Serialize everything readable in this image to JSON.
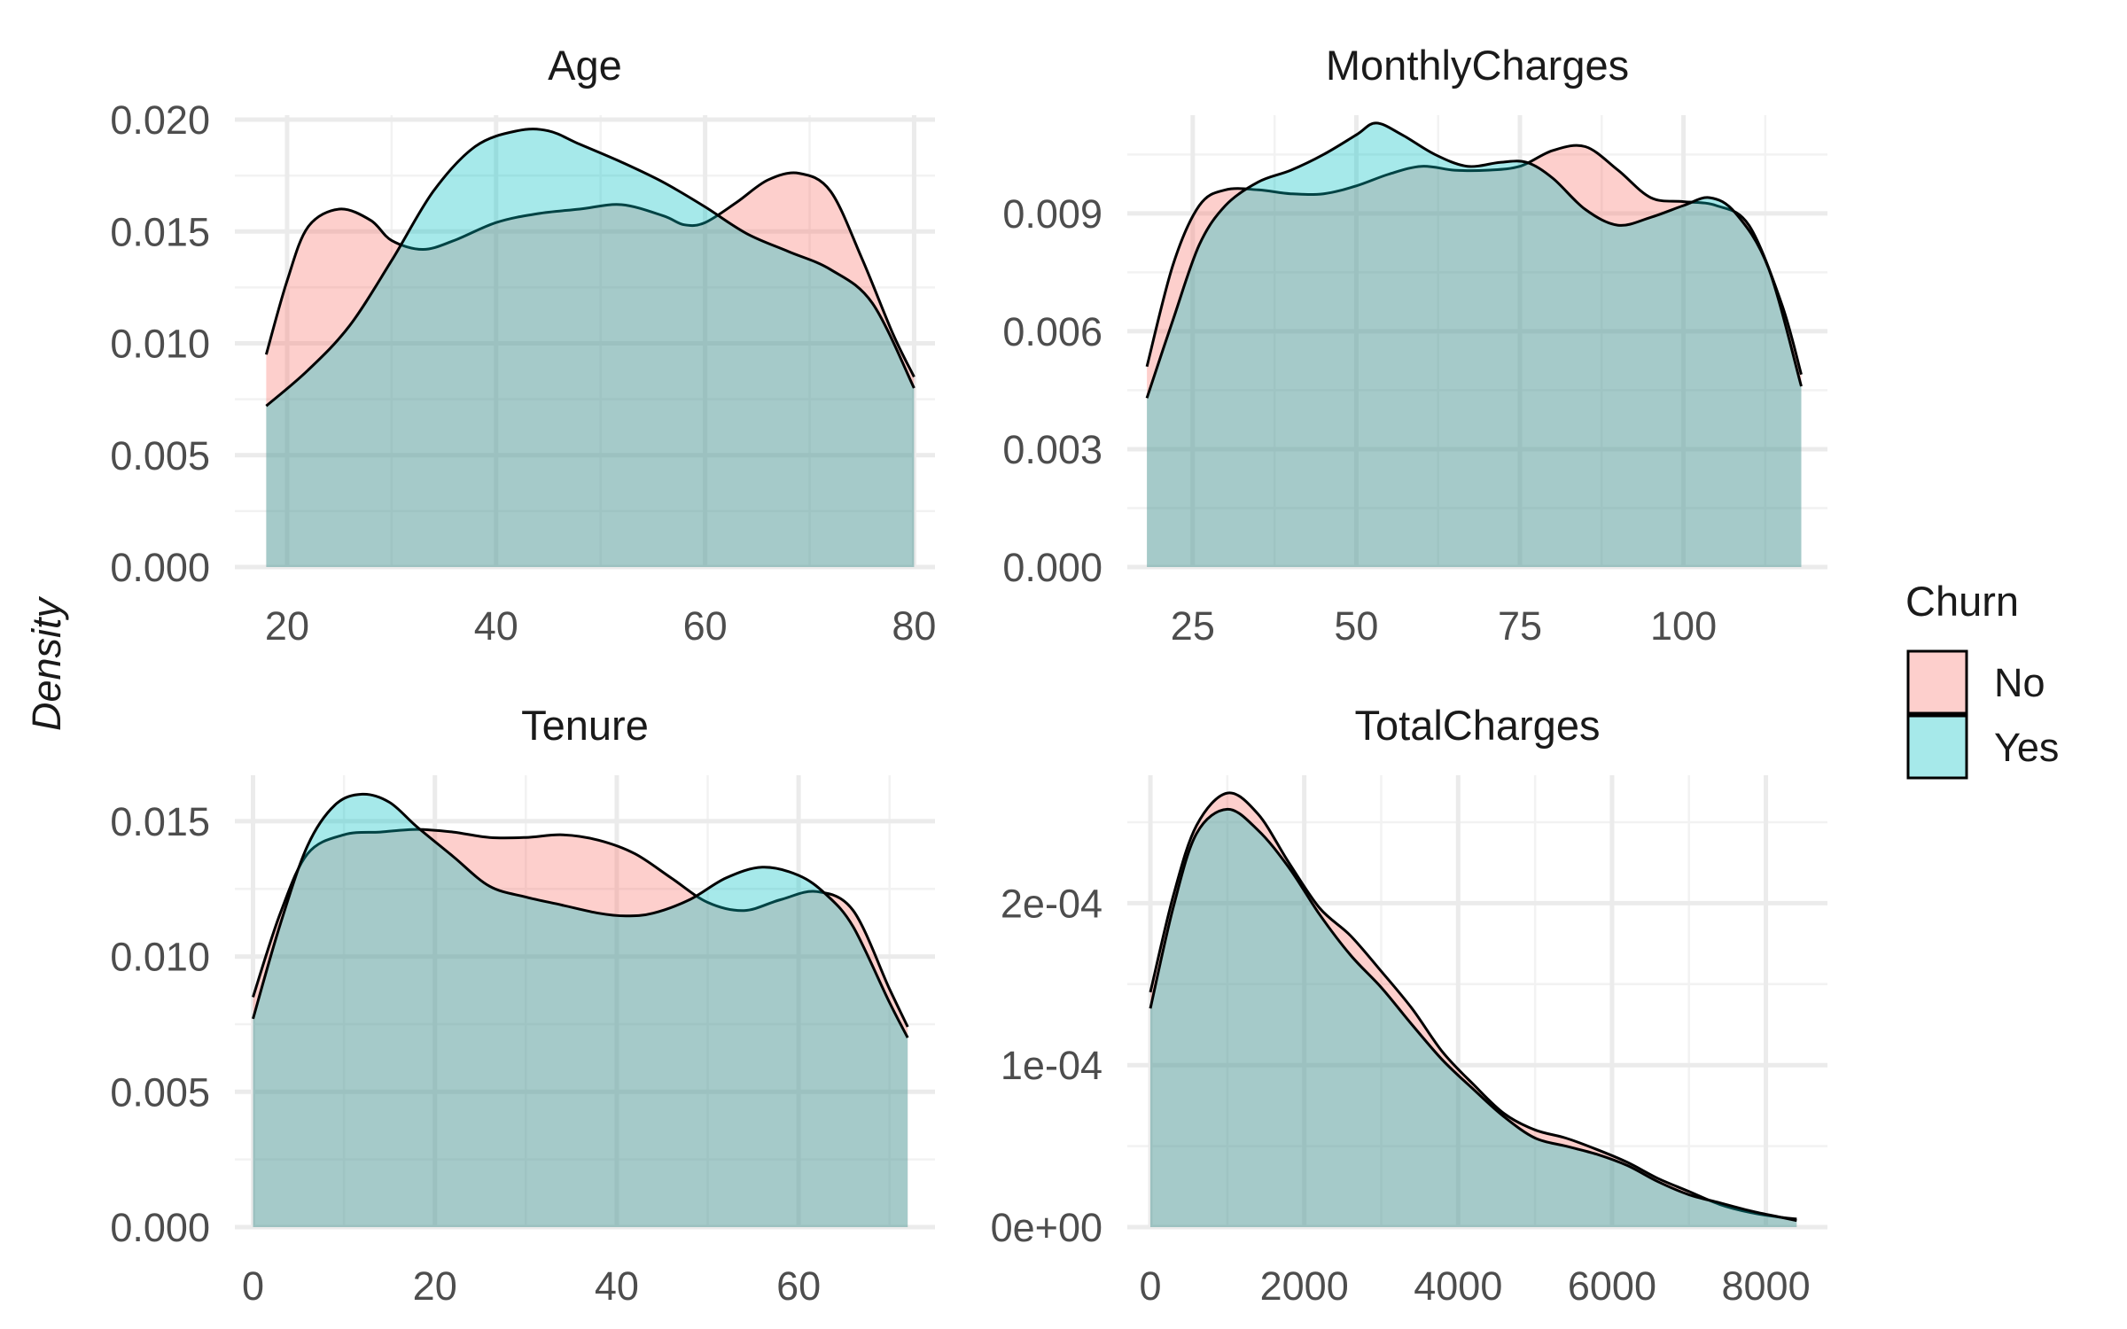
{
  "chart_data": {
    "type": "area",
    "ylabel": "Density",
    "legend": {
      "title": "Churn",
      "placement": "right",
      "entries": [
        {
          "name": "No",
          "color": "#F8766D"
        },
        {
          "name": "Yes",
          "color": "#00BFC4"
        }
      ]
    },
    "fill_alpha": 0.35,
    "panels": [
      {
        "title": "Age",
        "xlim": [
          15,
          82
        ],
        "ylim": [
          0,
          0.0202
        ],
        "xticks": [
          20,
          40,
          60,
          80
        ],
        "xtick_labels": [
          "20",
          "40",
          "60",
          "80"
        ],
        "yticks": [
          0,
          0.005,
          0.01,
          0.015,
          0.02
        ],
        "ytick_labels": [
          "0.000",
          "0.005",
          "0.010",
          "0.015",
          "0.020"
        ],
        "series": [
          {
            "name": "No",
            "x": [
              18,
              20,
              22,
              25,
              28,
              30,
              33,
              36,
              40,
              44,
              48,
              52,
              56,
              58,
              60,
              63,
              66,
              69,
              72,
              75,
              78,
              80
            ],
            "y": [
              0.0095,
              0.0128,
              0.0152,
              0.016,
              0.0155,
              0.0146,
              0.0142,
              0.0146,
              0.0154,
              0.0158,
              0.016,
              0.0162,
              0.0157,
              0.0153,
              0.0154,
              0.0163,
              0.0173,
              0.0176,
              0.0168,
              0.0138,
              0.0104,
              0.0085
            ]
          },
          {
            "name": "Yes",
            "x": [
              18,
              22,
              26,
              30,
              34,
              38,
              42,
              45,
              48,
              52,
              56,
              60,
              64,
              68,
              72,
              76,
              80
            ],
            "y": [
              0.0072,
              0.0088,
              0.0108,
              0.0137,
              0.0168,
              0.0188,
              0.0195,
              0.0195,
              0.0189,
              0.0181,
              0.0172,
              0.0161,
              0.0149,
              0.0141,
              0.0133,
              0.0118,
              0.008
            ]
          }
        ]
      },
      {
        "title": "MonthlyCharges",
        "xlim": [
          15,
          122
        ],
        "ylim": [
          0,
          0.0115
        ],
        "xticks": [
          25,
          50,
          75,
          100
        ],
        "xtick_labels": [
          "25",
          "50",
          "75",
          "100"
        ],
        "yticks": [
          0,
          0.003,
          0.006,
          0.009
        ],
        "ytick_labels": [
          "0.000",
          "0.003",
          "0.006",
          "0.009"
        ],
        "series": [
          {
            "name": "No",
            "x": [
              18,
              22,
              26,
              30,
              35,
              40,
              45,
              50,
              55,
              60,
              65,
              70,
              75,
              80,
              85,
              90,
              95,
              100,
              105,
              110,
              115,
              118
            ],
            "y": [
              0.0051,
              0.0077,
              0.0092,
              0.0096,
              0.0096,
              0.0095,
              0.0095,
              0.0097,
              0.01,
              0.0102,
              0.0101,
              0.0101,
              0.0102,
              0.0106,
              0.0107,
              0.0101,
              0.0094,
              0.0093,
              0.0092,
              0.0087,
              0.0067,
              0.0049
            ]
          },
          {
            "name": "Yes",
            "x": [
              18,
              22,
              26,
              30,
              35,
              40,
              45,
              50,
              53,
              57,
              62,
              67,
              72,
              76,
              80,
              85,
              90,
              95,
              100,
              104,
              108,
              113,
              118
            ],
            "y": [
              0.0043,
              0.0063,
              0.0082,
              0.0092,
              0.0098,
              0.0101,
              0.0105,
              0.011,
              0.0113,
              0.011,
              0.0105,
              0.0102,
              0.0103,
              0.0103,
              0.0099,
              0.0091,
              0.0087,
              0.0089,
              0.0092,
              0.0094,
              0.009,
              0.0076,
              0.0046
            ]
          }
        ]
      },
      {
        "title": "Tenure",
        "xlim": [
          -2,
          75
        ],
        "ylim": [
          0,
          0.0167
        ],
        "xticks": [
          0,
          20,
          40,
          60
        ],
        "xtick_labels": [
          "0",
          "20",
          "40",
          "60"
        ],
        "yticks": [
          0,
          0.005,
          0.01,
          0.015
        ],
        "ytick_labels": [
          "0.000",
          "0.005",
          "0.010",
          "0.015"
        ],
        "series": [
          {
            "name": "No",
            "x": [
              0,
              3,
              6,
              10,
              14,
              18,
              22,
              26,
              30,
              34,
              38,
              42,
              46,
              50,
              54,
              58,
              62,
              66,
              70,
              72
            ],
            "y": [
              0.0085,
              0.0116,
              0.0138,
              0.0145,
              0.0146,
              0.0147,
              0.0146,
              0.0144,
              0.0144,
              0.0145,
              0.0143,
              0.0138,
              0.0129,
              0.012,
              0.0117,
              0.0121,
              0.0124,
              0.0117,
              0.0088,
              0.0074
            ]
          },
          {
            "name": "Yes",
            "x": [
              0,
              3,
              6,
              9,
              12,
              15,
              18,
              22,
              26,
              30,
              34,
              38,
              41,
              44,
              48,
              52,
              56,
              60,
              63,
              66,
              70,
              72
            ],
            "y": [
              0.0077,
              0.0112,
              0.0141,
              0.0156,
              0.016,
              0.0157,
              0.0148,
              0.0137,
              0.0126,
              0.0122,
              0.0119,
              0.0116,
              0.0115,
              0.0116,
              0.0121,
              0.0129,
              0.0133,
              0.013,
              0.0123,
              0.0111,
              0.0083,
              0.007
            ]
          }
        ]
      },
      {
        "title": "TotalCharges",
        "xlim": [
          -300,
          8800
        ],
        "ylim": [
          0,
          0.000279
        ],
        "xticks": [
          0,
          2000,
          4000,
          6000,
          8000
        ],
        "xtick_labels": [
          "0",
          "2000",
          "4000",
          "6000",
          "8000"
        ],
        "yticks": [
          0,
          0.0001,
          0.0002
        ],
        "ytick_labels": [
          "0e+00",
          "1e-04",
          "2e-04"
        ],
        "series": [
          {
            "name": "No",
            "x": [
              0,
              300,
              600,
              1000,
              1400,
              1800,
              2200,
              2600,
              3000,
              3400,
              3800,
              4200,
              4600,
              5000,
              5400,
              5800,
              6200,
              6600,
              7000,
              7400,
              7800,
              8200,
              8400
            ],
            "y": [
              0.000145,
              0.000205,
              0.000248,
              0.000268,
              0.000255,
              0.000225,
              0.000197,
              0.00018,
              0.000158,
              0.000135,
              0.000108,
              8.8e-05,
              7e-05,
              6e-05,
              5.5e-05,
              4.8e-05,
              4e-05,
              3e-05,
              2.2e-05,
              1.4e-05,
              9e-06,
              6e-06,
              5e-06
            ]
          },
          {
            "name": "Yes",
            "x": [
              0,
              300,
              600,
              1000,
              1400,
              1800,
              2200,
              2600,
              3000,
              3400,
              3800,
              4200,
              4600,
              5000,
              5400,
              5800,
              6200,
              6600,
              7000,
              7400,
              7800,
              8200,
              8400
            ],
            "y": [
              0.000135,
              0.000198,
              0.000243,
              0.000258,
              0.000245,
              0.000222,
              0.000193,
              0.000168,
              0.000148,
              0.000125,
              0.000103,
              8.5e-05,
              6.8e-05,
              5.5e-05,
              5e-05,
              4.5e-05,
              3.8e-05,
              2.8e-05,
              2e-05,
              1.5e-05,
              1e-05,
              6e-06,
              4e-06
            ]
          }
        ]
      }
    ]
  }
}
